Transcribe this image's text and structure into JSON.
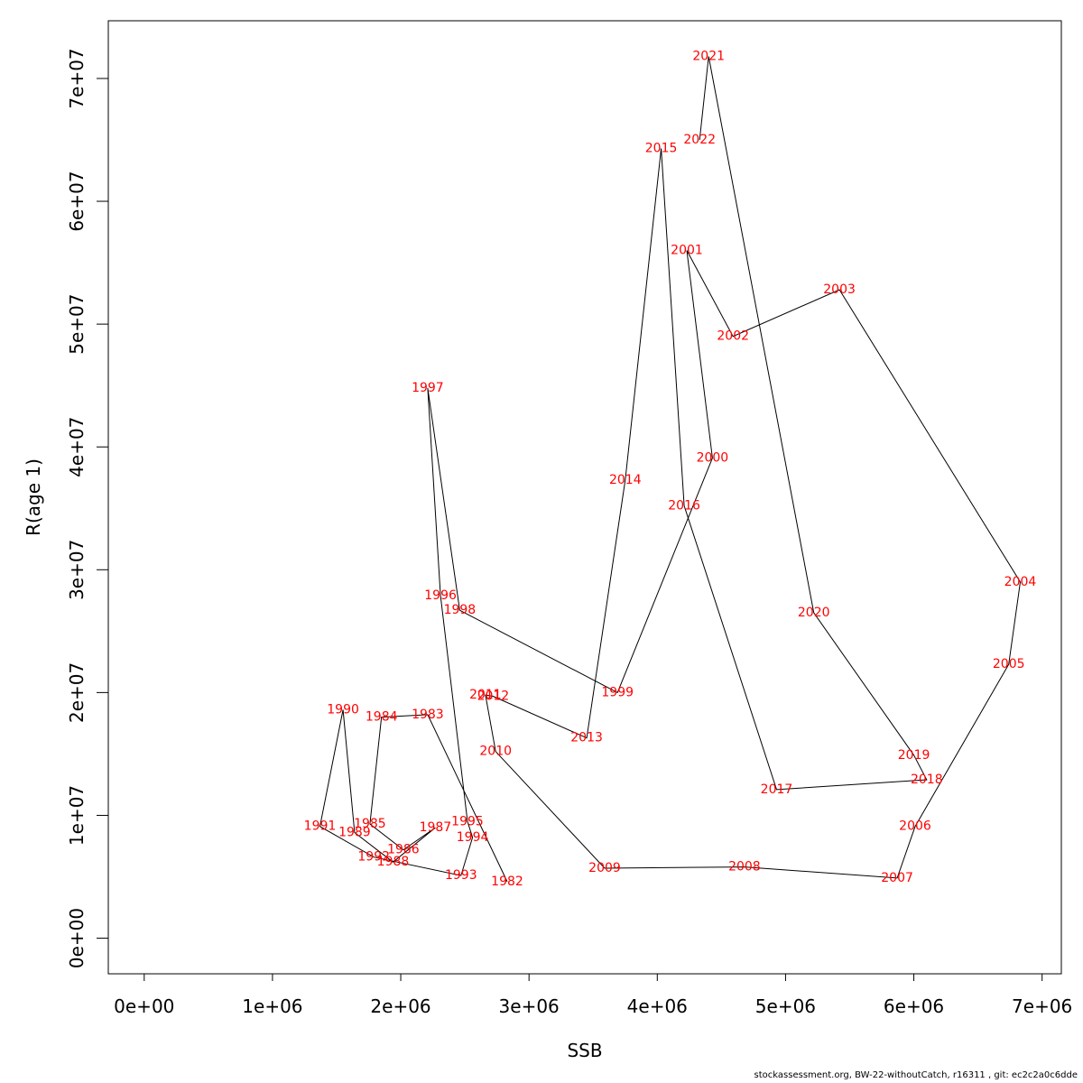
{
  "chart_data": {
    "type": "line",
    "xlabel": "SSB",
    "ylabel": "R(age 1)",
    "xlim": [
      -280000,
      7150000
    ],
    "ylim": [
      -2900000,
      74700000
    ],
    "xticks": [
      0,
      1000000,
      2000000,
      3000000,
      4000000,
      5000000,
      6000000,
      7000000
    ],
    "xtick_labels": [
      "0e+00",
      "1e+06",
      "2e+06",
      "3e+06",
      "4e+06",
      "5e+06",
      "6e+06",
      "7e+06"
    ],
    "yticks": [
      0,
      10000000,
      20000000,
      30000000,
      40000000,
      50000000,
      60000000,
      70000000
    ],
    "ytick_labels": [
      "0e+00",
      "1e+07",
      "2e+07",
      "3e+07",
      "4e+07",
      "5e+07",
      "6e+07",
      "7e+07"
    ],
    "line_color": "#000000",
    "label_color": "#ff0000",
    "grid": false,
    "points": [
      {
        "label": "1982",
        "x": 2830000,
        "y": 4600000
      },
      {
        "label": "1983",
        "x": 2210000,
        "y": 18200000
      },
      {
        "label": "1984",
        "x": 1850000,
        "y": 18000000
      },
      {
        "label": "1985",
        "x": 1760000,
        "y": 9300000
      },
      {
        "label": "1986",
        "x": 2020000,
        "y": 7200000
      },
      {
        "label": "1987",
        "x": 2270000,
        "y": 9000000
      },
      {
        "label": "1988",
        "x": 1940000,
        "y": 6200000
      },
      {
        "label": "1989",
        "x": 1640000,
        "y": 8600000
      },
      {
        "label": "1990",
        "x": 1550000,
        "y": 18600000
      },
      {
        "label": "1991",
        "x": 1370000,
        "y": 9100000
      },
      {
        "label": "1992",
        "x": 1790000,
        "y": 6600000
      },
      {
        "label": "1993",
        "x": 2470000,
        "y": 5100000
      },
      {
        "label": "1994",
        "x": 2560000,
        "y": 8200000
      },
      {
        "label": "1995",
        "x": 2520000,
        "y": 9500000
      },
      {
        "label": "1996",
        "x": 2310000,
        "y": 27900000
      },
      {
        "label": "1997",
        "x": 2210000,
        "y": 44800000
      },
      {
        "label": "1998",
        "x": 2460000,
        "y": 26700000
      },
      {
        "label": "1999",
        "x": 3690000,
        "y": 20000000
      },
      {
        "label": "2000",
        "x": 4430000,
        "y": 39100000
      },
      {
        "label": "2001",
        "x": 4230000,
        "y": 56000000
      },
      {
        "label": "2002",
        "x": 4590000,
        "y": 49000000
      },
      {
        "label": "2003",
        "x": 5420000,
        "y": 52800000
      },
      {
        "label": "2004",
        "x": 6830000,
        "y": 29000000
      },
      {
        "label": "2005",
        "x": 6740000,
        "y": 22300000
      },
      {
        "label": "2006",
        "x": 6010000,
        "y": 9100000
      },
      {
        "label": "2007",
        "x": 5870000,
        "y": 4900000
      },
      {
        "label": "2008",
        "x": 4680000,
        "y": 5800000
      },
      {
        "label": "2009",
        "x": 3590000,
        "y": 5700000
      },
      {
        "label": "2010",
        "x": 2740000,
        "y": 15200000
      },
      {
        "label": "2011",
        "x": 2660000,
        "y": 19800000
      },
      {
        "label": "2012",
        "x": 2720000,
        "y": 19700000
      },
      {
        "label": "2013",
        "x": 3450000,
        "y": 16300000
      },
      {
        "label": "2014",
        "x": 3750000,
        "y": 37300000
      },
      {
        "label": "2015",
        "x": 4030000,
        "y": 64300000
      },
      {
        "label": "2016",
        "x": 4210000,
        "y": 35200000
      },
      {
        "label": "2017",
        "x": 4930000,
        "y": 12100000
      },
      {
        "label": "2018",
        "x": 6100000,
        "y": 12900000
      },
      {
        "label": "2019",
        "x": 6000000,
        "y": 14900000
      },
      {
        "label": "2020",
        "x": 5220000,
        "y": 26500000
      },
      {
        "label": "2021",
        "x": 4400000,
        "y": 71800000
      },
      {
        "label": "2022",
        "x": 4330000,
        "y": 65000000
      }
    ]
  },
  "footer": "stockassessment.org, BW-22-withoutCatch, r16311 , git: ec2c2a0c6dde"
}
